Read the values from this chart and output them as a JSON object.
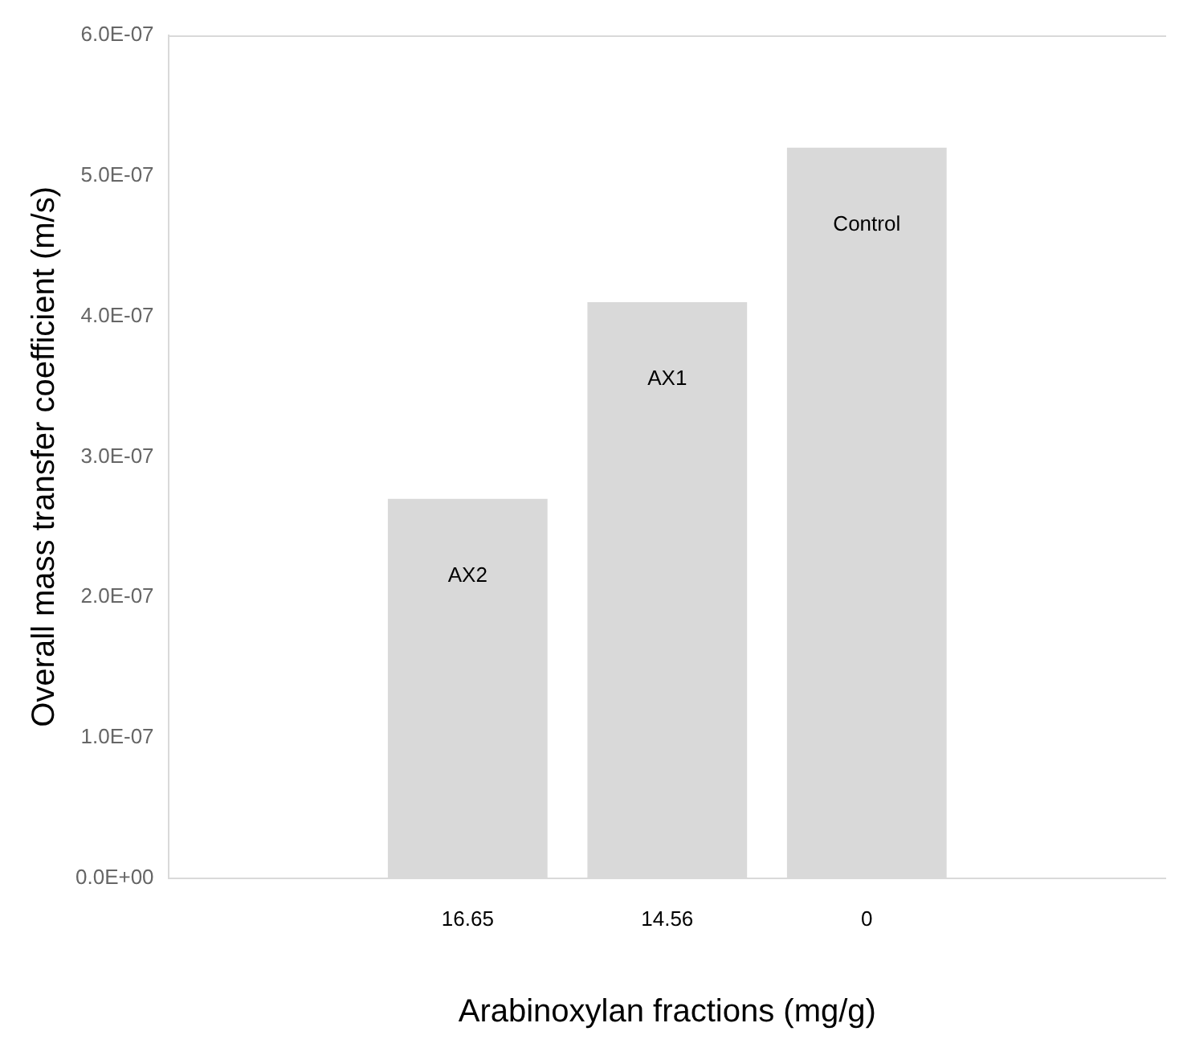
{
  "chart_data": {
    "type": "bar",
    "xlabel": "Arabinoxylan fractions (mg/g)",
    "ylabel": "Overall mass transfer coefficient (m/s)",
    "categories": [
      null,
      "16.65",
      "14.56",
      "0",
      null
    ],
    "values": [
      null,
      2.7e-07,
      4.1e-07,
      5.2e-07,
      null
    ],
    "color": "#d9d9d9",
    "ylim": [
      0,
      6e-07
    ],
    "yticks": [
      {
        "value": 0,
        "label": "0.0E+00"
      },
      {
        "value": 1e-07,
        "label": "1.0E-07"
      },
      {
        "value": 2e-07,
        "label": "2.0E-07"
      },
      {
        "value": 3e-07,
        "label": "3.0E-07"
      },
      {
        "value": 4e-07,
        "label": "4.0E-07"
      },
      {
        "value": 5e-07,
        "label": "5.0E-07"
      },
      {
        "value": 6e-07,
        "label": "6.0E-07"
      }
    ],
    "annotations": [
      "AX2",
      "AX1",
      "Control"
    ]
  }
}
